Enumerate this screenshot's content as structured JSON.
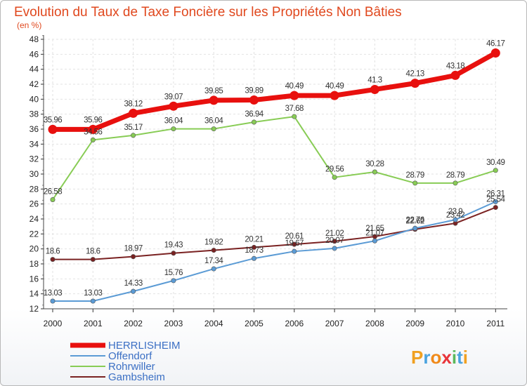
{
  "chart_data": {
    "type": "line",
    "title": "Evolution du Taux de Taxe Foncière sur les Propriétés Non Bâties",
    "ylabel": "(en %)",
    "xlabel": "",
    "ylim": [
      12,
      48
    ],
    "yticks": [
      12,
      14,
      16,
      18,
      20,
      22,
      24,
      26,
      28,
      30,
      32,
      34,
      36,
      38,
      40,
      42,
      44,
      46,
      48
    ],
    "categories": [
      "2000",
      "2001",
      "2002",
      "2003",
      "2004",
      "2005",
      "2006",
      "2007",
      "2008",
      "2009",
      "2010",
      "2011"
    ],
    "series": [
      {
        "name": "Gambsheim",
        "color": "#7a2222",
        "values": [
          18.6,
          18.6,
          18.97,
          19.43,
          19.82,
          20.21,
          20.61,
          21.02,
          21.65,
          22.62,
          23.42,
          25.54
        ],
        "labels": [
          "18.6",
          "18.6",
          "18.97",
          "19.43",
          "19.82",
          "20.21",
          "20.61",
          "21.02",
          "21.65",
          "22.62",
          "23.42",
          "25.54"
        ]
      },
      {
        "name": "Offendorf",
        "color": "#5b9bd5",
        "values": [
          13.03,
          13.03,
          14.33,
          15.76,
          17.34,
          18.73,
          19.67,
          20.07,
          21.07,
          22.76,
          23.9,
          26.31
        ],
        "labels": [
          "13.03",
          "13.03",
          "14.33",
          "15.76",
          "17.34",
          "18.73",
          "19.67",
          "20.07",
          "21.07",
          "22.76",
          "23.9",
          "26.31"
        ]
      },
      {
        "name": "Rohrwiller",
        "color": "#88cc55",
        "values": [
          26.58,
          34.56,
          35.17,
          36.04,
          36.04,
          36.94,
          37.68,
          29.56,
          30.28,
          28.79,
          28.79,
          30.49
        ],
        "labels": [
          "26.58",
          "34.56",
          "35.17",
          "36.04",
          "36.04",
          "36.94",
          "37.68",
          "29.56",
          "30.28",
          "28.79",
          "28.79",
          "30.49"
        ]
      },
      {
        "name": "HERRLISHEIM",
        "color": "#e8100e",
        "values": [
          35.96,
          35.96,
          38.12,
          39.07,
          39.85,
          39.89,
          40.49,
          40.49,
          41.3,
          42.13,
          43.18,
          46.17
        ],
        "labels": [
          "35.96",
          "35.96",
          "38.12",
          "39.07",
          "39.85",
          "39.89",
          "40.49",
          "40.49",
          "41.3",
          "42.13",
          "43.18",
          "46.17"
        ]
      }
    ],
    "legend": [
      "HERRLISHEIM",
      "Offendorf",
      "Rohrwiller",
      "Gambsheim"
    ],
    "legend_position": "bottom-left"
  },
  "logo": {
    "letters": [
      "P",
      "r",
      "o",
      "x",
      "i",
      "t",
      "i"
    ],
    "colors": [
      "#f0a020",
      "#4aa3df",
      "#f08a1a",
      "#e8343a",
      "#5cb85c",
      "#4aa3df",
      "#f0a020"
    ]
  }
}
